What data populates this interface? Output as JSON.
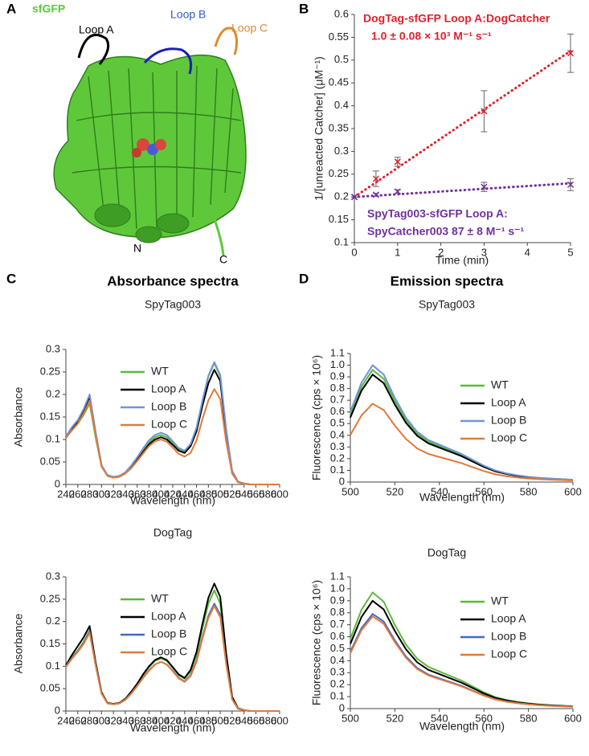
{
  "structure": {
    "panel_label": "A",
    "title": "sfGFP",
    "labels": [
      "Loop A",
      "Loop B",
      "Loop C",
      "N",
      "C"
    ]
  },
  "panels": [
    {
      "label": "B"
    },
    {
      "label": "C",
      "title": "Absorbance spectra"
    },
    {
      "label": "D",
      "title": "Emission spectra"
    }
  ],
  "chart_data": [
    {
      "type": "scatter",
      "xlabel": "Time (min)",
      "ylabel": "1/[unreacted Catcher] (μM⁻¹)",
      "x": [
        0,
        0.5,
        1,
        3,
        5
      ],
      "fit_x": [
        0,
        5
      ],
      "xlim": [
        0,
        5
      ],
      "xticks": [
        0,
        1,
        2,
        3,
        4,
        5
      ],
      "ylim": [
        0.1,
        0.6
      ],
      "yticks": [
        0.1,
        0.15,
        0.2,
        0.25,
        0.3,
        0.35,
        0.4,
        0.45,
        0.5,
        0.55,
        0.6
      ],
      "series": [
        {
          "color": "#e3202a",
          "values": [
            0.2,
            0.24,
            0.277,
            0.388,
            0.515
          ],
          "errors": [
            0,
            0.017,
            0.01,
            0.045,
            0.042
          ],
          "fit": [
            0.2,
            0.52
          ]
        },
        {
          "color": "#7030a0",
          "values": [
            0.2,
            0.205,
            0.212,
            0.222,
            0.227
          ],
          "errors": [
            0,
            0.003,
            0.004,
            0.01,
            0.013
          ],
          "fit": [
            0.2,
            0.23
          ]
        }
      ],
      "annotations": [
        {
          "color": "#e3202a",
          "lines": [
            "DogTag-sfGFP Loop A:DogCatcher",
            "1.0 ± 0.08 × 10³ M⁻¹ s⁻¹"
          ]
        },
        {
          "color": "#7030a0",
          "lines": [
            "SpyTag003-sfGFP Loop A:",
            "SpyCatcher003 87 ± 8 M⁻¹ s⁻¹"
          ]
        }
      ]
    },
    {
      "type": "line",
      "subtitle": "SpyTag003",
      "xlabel": "Wavelength (nm)",
      "ylabel": "Absorbance",
      "x": [
        240,
        250,
        260,
        270,
        280,
        290,
        300,
        310,
        320,
        330,
        340,
        350,
        360,
        370,
        380,
        390,
        400,
        410,
        420,
        430,
        440,
        450,
        460,
        470,
        480,
        490,
        500,
        510,
        520,
        530,
        540,
        550,
        560,
        570,
        580,
        590,
        600
      ],
      "xlim": [
        240,
        600
      ],
      "xticks": [
        240,
        260,
        280,
        300,
        320,
        340,
        360,
        380,
        400,
        420,
        440,
        460,
        480,
        500,
        520,
        540,
        560,
        580,
        600
      ],
      "ylim": [
        0,
        0.3
      ],
      "yticks": [
        0,
        0.05,
        0.1,
        0.15,
        0.2,
        0.25,
        0.3
      ],
      "series": [
        {
          "name": "WT",
          "color": "#5cb83c",
          "values": [
            0.105,
            0.12,
            0.135,
            0.155,
            0.18,
            0.105,
            0.04,
            0.02,
            0.016,
            0.018,
            0.026,
            0.04,
            0.057,
            0.076,
            0.093,
            0.105,
            0.11,
            0.105,
            0.092,
            0.078,
            0.072,
            0.088,
            0.125,
            0.185,
            0.24,
            0.27,
            0.24,
            0.12,
            0.03,
            0.006,
            0.002,
            0,
            0,
            0,
            0,
            0,
            0
          ]
        },
        {
          "name": "Loop A",
          "color": "#000000",
          "values": [
            0.105,
            0.125,
            0.14,
            0.165,
            0.195,
            0.115,
            0.042,
            0.02,
            0.016,
            0.018,
            0.025,
            0.038,
            0.054,
            0.072,
            0.089,
            0.1,
            0.105,
            0.1,
            0.088,
            0.075,
            0.07,
            0.085,
            0.118,
            0.175,
            0.225,
            0.255,
            0.23,
            0.115,
            0.028,
            0.005,
            0.002,
            0,
            0,
            0,
            0,
            0,
            0
          ]
        },
        {
          "name": "Loop B",
          "color": "#6f94d8",
          "values": [
            0.107,
            0.127,
            0.143,
            0.168,
            0.2,
            0.118,
            0.043,
            0.021,
            0.017,
            0.019,
            0.027,
            0.042,
            0.06,
            0.08,
            0.098,
            0.11,
            0.115,
            0.11,
            0.096,
            0.081,
            0.075,
            0.09,
            0.126,
            0.186,
            0.242,
            0.272,
            0.243,
            0.122,
            0.03,
            0.006,
            0.002,
            0,
            0,
            0,
            0,
            0,
            0
          ]
        },
        {
          "name": "Loop C",
          "color": "#e07a3a",
          "values": [
            0.103,
            0.12,
            0.135,
            0.158,
            0.185,
            0.11,
            0.04,
            0.019,
            0.015,
            0.017,
            0.024,
            0.036,
            0.052,
            0.069,
            0.085,
            0.096,
            0.1,
            0.095,
            0.082,
            0.068,
            0.062,
            0.07,
            0.098,
            0.145,
            0.187,
            0.212,
            0.19,
            0.095,
            0.024,
            0.005,
            0.001,
            0,
            0,
            0,
            0,
            0,
            0
          ]
        }
      ]
    },
    {
      "type": "line",
      "subtitle": "DogTag",
      "xlabel": "Wavelength (nm)",
      "ylabel": "Absorbance",
      "x": [
        240,
        250,
        260,
        270,
        280,
        290,
        300,
        310,
        320,
        330,
        340,
        350,
        360,
        370,
        380,
        390,
        400,
        410,
        420,
        430,
        440,
        450,
        460,
        470,
        480,
        490,
        500,
        510,
        520,
        530,
        540,
        550,
        560,
        570,
        580,
        590,
        600
      ],
      "xlim": [
        240,
        600
      ],
      "xticks": [
        240,
        260,
        280,
        300,
        320,
        340,
        360,
        380,
        400,
        420,
        440,
        460,
        480,
        500,
        520,
        540,
        560,
        580,
        600
      ],
      "ylim": [
        0,
        0.3
      ],
      "yticks": [
        0,
        0.05,
        0.1,
        0.15,
        0.2,
        0.25,
        0.3
      ],
      "series": [
        {
          "name": "WT",
          "color": "#5cb83c",
          "values": [
            0.1,
            0.12,
            0.135,
            0.155,
            0.18,
            0.105,
            0.04,
            0.018,
            0.016,
            0.018,
            0.027,
            0.042,
            0.06,
            0.08,
            0.098,
            0.112,
            0.118,
            0.112,
            0.097,
            0.08,
            0.072,
            0.088,
            0.125,
            0.185,
            0.24,
            0.27,
            0.24,
            0.12,
            0.03,
            0.006,
            0.002,
            0,
            0,
            0,
            0,
            0,
            0
          ]
        },
        {
          "name": "Loop A",
          "color": "#000000",
          "values": [
            0.102,
            0.125,
            0.145,
            0.165,
            0.19,
            0.11,
            0.042,
            0.018,
            0.016,
            0.018,
            0.027,
            0.043,
            0.061,
            0.082,
            0.1,
            0.114,
            0.12,
            0.114,
            0.098,
            0.082,
            0.074,
            0.092,
            0.132,
            0.195,
            0.253,
            0.285,
            0.255,
            0.128,
            0.032,
            0.006,
            0.002,
            0,
            0,
            0,
            0,
            0,
            0
          ]
        },
        {
          "name": "Loop B",
          "color": "#4169c8",
          "values": [
            0.1,
            0.118,
            0.133,
            0.152,
            0.178,
            0.104,
            0.04,
            0.017,
            0.015,
            0.017,
            0.025,
            0.039,
            0.056,
            0.074,
            0.091,
            0.104,
            0.11,
            0.104,
            0.09,
            0.074,
            0.066,
            0.08,
            0.112,
            0.165,
            0.213,
            0.24,
            0.215,
            0.108,
            0.027,
            0.005,
            0.002,
            0,
            0,
            0,
            0,
            0,
            0
          ]
        },
        {
          "name": "Loop C",
          "color": "#e07a3a",
          "values": [
            0.098,
            0.117,
            0.132,
            0.15,
            0.175,
            0.103,
            0.039,
            0.017,
            0.015,
            0.017,
            0.025,
            0.039,
            0.056,
            0.074,
            0.09,
            0.104,
            0.11,
            0.104,
            0.089,
            0.073,
            0.065,
            0.078,
            0.11,
            0.162,
            0.208,
            0.235,
            0.21,
            0.105,
            0.026,
            0.005,
            0.002,
            0,
            0,
            0,
            0,
            0,
            0
          ]
        }
      ]
    },
    {
      "type": "line",
      "subtitle": "SpyTag003",
      "xlabel": "Wavelength (nm)",
      "ylabel": "Fluorescence (cps × 10⁶)",
      "x": [
        500,
        505,
        510,
        515,
        520,
        525,
        530,
        535,
        540,
        545,
        550,
        555,
        560,
        565,
        570,
        575,
        580,
        585,
        590,
        595,
        600
      ],
      "xlim": [
        500,
        600
      ],
      "xticks": [
        500,
        520,
        540,
        560,
        580,
        600
      ],
      "ylim": [
        0,
        1.1
      ],
      "yticks": [
        0,
        0.1,
        0.2,
        0.3,
        0.4,
        0.5,
        0.6,
        0.7,
        0.8,
        0.9,
        {
          "value": 1,
          "label": "1.0"
        },
        1.1
      ],
      "series": [
        {
          "name": "WT",
          "color": "#5cb83c",
          "values": [
            0.576,
            0.816,
            0.96,
            0.883,
            0.691,
            0.528,
            0.413,
            0.346,
            0.307,
            0.269,
            0.23,
            0.182,
            0.134,
            0.096,
            0.072,
            0.056,
            0.043,
            0.035,
            0.029,
            0.024,
            0.019
          ]
        },
        {
          "name": "Loop A",
          "color": "#000000",
          "values": [
            0.552,
            0.782,
            0.92,
            0.846,
            0.662,
            0.506,
            0.396,
            0.331,
            0.294,
            0.258,
            0.221,
            0.175,
            0.129,
            0.092,
            0.069,
            0.053,
            0.041,
            0.033,
            0.028,
            0.023,
            0.018
          ]
        },
        {
          "name": "Loop B",
          "color": "#6f94d8",
          "values": [
            0.6,
            0.85,
            1.0,
            0.92,
            0.72,
            0.55,
            0.43,
            0.36,
            0.32,
            0.28,
            0.24,
            0.19,
            0.14,
            0.1,
            0.075,
            0.058,
            0.045,
            0.036,
            0.03,
            0.025,
            0.02
          ]
        },
        {
          "name": "Loop C",
          "color": "#e07a3a",
          "values": [
            0.402,
            0.57,
            0.67,
            0.616,
            0.482,
            0.369,
            0.288,
            0.241,
            0.214,
            0.188,
            0.161,
            0.127,
            0.094,
            0.067,
            0.05,
            0.039,
            0.03,
            0.024,
            0.02,
            0.017,
            0.013
          ]
        }
      ]
    },
    {
      "type": "line",
      "subtitle": "DogTag",
      "xlabel": "Wavelength (nm)",
      "ylabel": "Fluorescence (cps × 10⁶)",
      "x": [
        500,
        505,
        510,
        515,
        520,
        525,
        530,
        535,
        540,
        545,
        550,
        555,
        560,
        565,
        570,
        575,
        580,
        585,
        590,
        595,
        600
      ],
      "xlim": [
        500,
        600
      ],
      "xticks": [
        500,
        520,
        540,
        560,
        580,
        600
      ],
      "ylim": [
        0,
        1.1
      ],
      "yticks": [
        0,
        0.1,
        0.2,
        0.3,
        0.4,
        0.5,
        0.6,
        0.7,
        0.8,
        0.9,
        {
          "value": 1,
          "label": "1.0"
        },
        1.1
      ],
      "series": [
        {
          "name": "WT",
          "color": "#5cb83c",
          "values": [
            0.582,
            0.825,
            0.97,
            0.892,
            0.698,
            0.534,
            0.417,
            0.349,
            0.31,
            0.272,
            0.233,
            0.184,
            0.136,
            0.097,
            0.073,
            0.056,
            0.044,
            0.035,
            0.029,
            0.024,
            0.019
          ]
        },
        {
          "name": "Loop A",
          "color": "#000000",
          "values": [
            0.54,
            0.765,
            0.9,
            0.828,
            0.648,
            0.495,
            0.387,
            0.324,
            0.288,
            0.252,
            0.216,
            0.171,
            0.126,
            0.09,
            0.068,
            0.052,
            0.041,
            0.032,
            0.027,
            0.023,
            0.018
          ]
        },
        {
          "name": "Loop B",
          "color": "#4169c8",
          "values": [
            0.474,
            0.672,
            0.79,
            0.727,
            0.569,
            0.435,
            0.34,
            0.284,
            0.253,
            0.221,
            0.19,
            0.15,
            0.111,
            0.079,
            0.059,
            0.046,
            0.036,
            0.028,
            0.024,
            0.02,
            0.016
          ]
        },
        {
          "name": "Loop C",
          "color": "#e07a3a",
          "values": [
            0.462,
            0.655,
            0.77,
            0.708,
            0.554,
            0.424,
            0.331,
            0.277,
            0.246,
            0.216,
            0.185,
            0.146,
            0.108,
            0.077,
            0.058,
            0.045,
            0.035,
            0.028,
            0.023,
            0.019,
            0.015
          ]
        }
      ]
    }
  ]
}
